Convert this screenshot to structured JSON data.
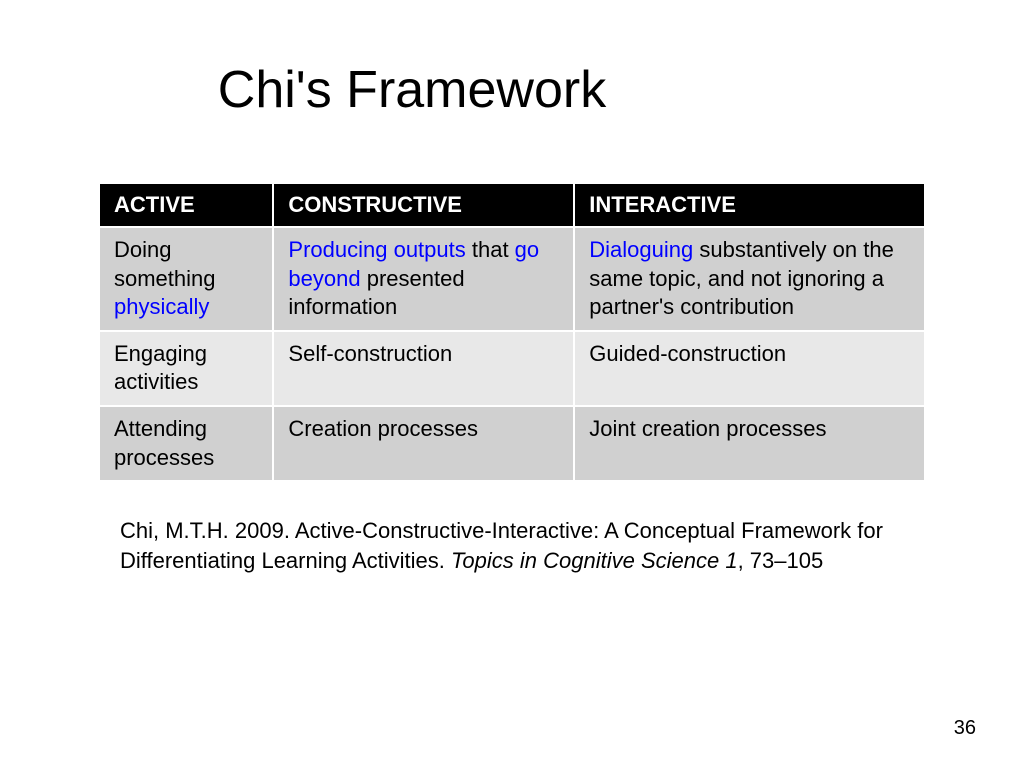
{
  "title": "Chi's Framework",
  "table": {
    "columns": [
      "ACTIVE",
      "CONSTRUCTIVE",
      "INTERACTIVE"
    ],
    "header_bg": "#000000",
    "header_fg": "#ffffff",
    "row_bg_a": "#d0d0d0",
    "row_bg_b": "#e8e8e8",
    "highlight_color": "#0000ff",
    "cell_fontsize": 22,
    "header_fontsize": 22,
    "rows": [
      {
        "shade": "a",
        "cells": [
          {
            "segments": [
              {
                "t": "Doing something "
              },
              {
                "t": "physically",
                "hl": true
              }
            ]
          },
          {
            "segments": [
              {
                "t": "Producing outputs",
                "hl": true
              },
              {
                "t": " that "
              },
              {
                "t": "go beyond",
                "hl": true
              },
              {
                "t": " presented information"
              }
            ]
          },
          {
            "segments": [
              {
                "t": "Dialoguing",
                "hl": true
              },
              {
                "t": " substantively on the same topic, and not ignoring a partner's contribution"
              }
            ]
          }
        ]
      },
      {
        "shade": "b",
        "cells": [
          {
            "segments": [
              {
                "t": "Engaging activities"
              }
            ]
          },
          {
            "segments": [
              {
                "t": "Self-construction"
              }
            ]
          },
          {
            "segments": [
              {
                "t": "Guided-construction"
              }
            ]
          }
        ]
      },
      {
        "shade": "a",
        "cells": [
          {
            "segments": [
              {
                "t": "Attending processes"
              }
            ]
          },
          {
            "segments": [
              {
                "t": "Creation processes"
              }
            ]
          },
          {
            "segments": [
              {
                "t": "Joint creation processes"
              }
            ]
          }
        ]
      }
    ]
  },
  "citation": {
    "prefix": "Chi, M.T.H. 2009. Active-Constructive-Interactive: A Conceptual Framework for Differentiating Learning Activities. ",
    "italic": "Topics in Cognitive Science 1",
    "suffix": ", 73–105"
  },
  "page_number": "36",
  "colors": {
    "background": "#ffffff",
    "text": "#000000"
  }
}
